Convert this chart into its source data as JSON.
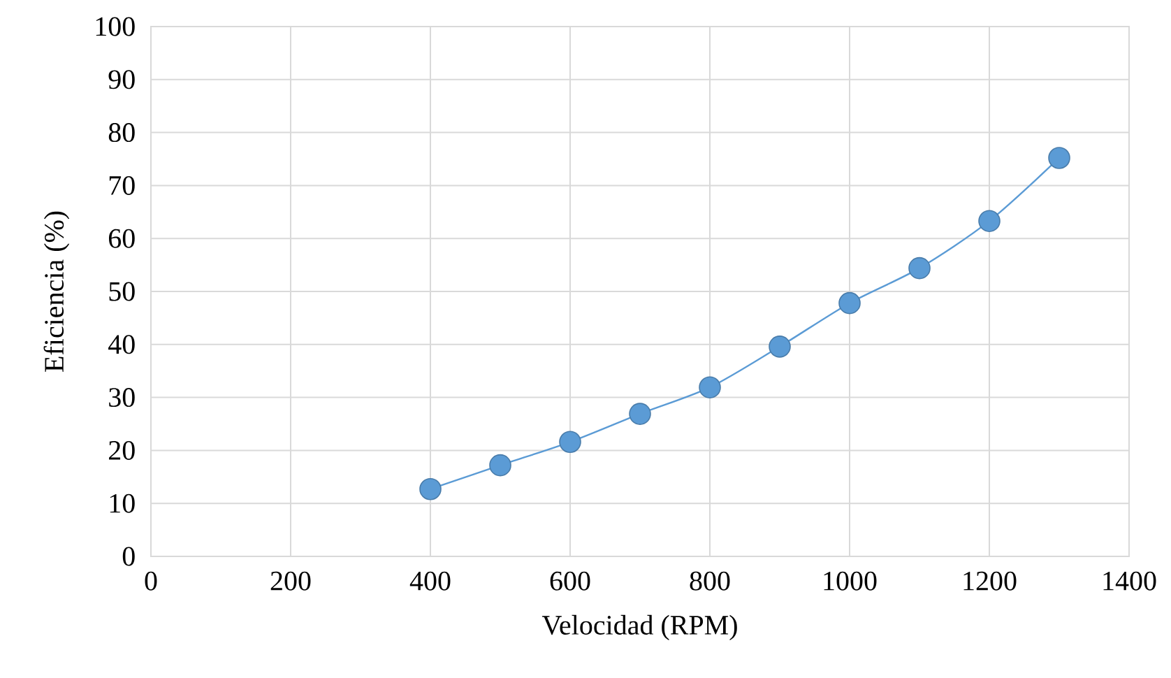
{
  "chart_data": {
    "type": "line",
    "xlabel": "Velocidad (RPM)",
    "ylabel": "Eficiencia (%)",
    "x": [
      400,
      500,
      600,
      700,
      800,
      900,
      1000,
      1100,
      1200,
      1300
    ],
    "series": [
      {
        "color": "#5b9bd5",
        "values": [
          12.7,
          17.2,
          21.6,
          26.9,
          31.9,
          39.6,
          47.8,
          54.4,
          63.3,
          75.2
        ]
      }
    ],
    "xlim": [
      0,
      1400
    ],
    "ylim": [
      0,
      100
    ],
    "xticks": [
      0,
      200,
      400,
      600,
      800,
      1000,
      1200,
      1400
    ],
    "yticks": [
      0,
      10,
      20,
      30,
      40,
      50,
      60,
      70,
      80,
      90,
      100
    ],
    "grid": true,
    "marker": "circle",
    "line_style": "solid"
  }
}
